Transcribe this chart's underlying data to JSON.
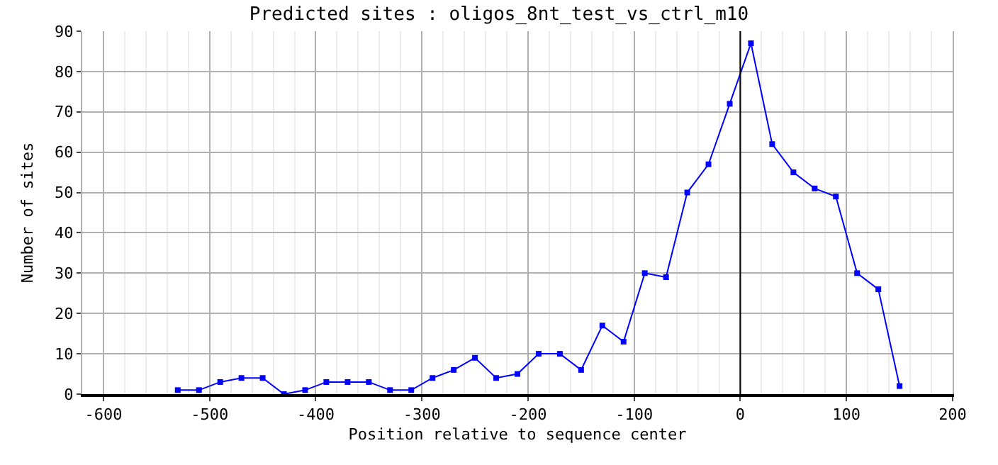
{
  "chart_data": {
    "type": "line",
    "title": "Predicted sites : oligos_8nt_test_vs_ctrl_m10",
    "xlabel": "Position relative to sequence center",
    "ylabel": "Number of sites",
    "x": [
      -530,
      -510,
      -490,
      -470,
      -450,
      -430,
      -410,
      -390,
      -370,
      -350,
      -330,
      -310,
      -290,
      -270,
      -250,
      -230,
      -210,
      -190,
      -170,
      -150,
      -130,
      -110,
      -90,
      -70,
      -50,
      -30,
      -10,
      10,
      30,
      50,
      70,
      90,
      110,
      130,
      150
    ],
    "series": [
      {
        "color": "#0000ff",
        "values": [
          1,
          1,
          3,
          4,
          4,
          0,
          1,
          3,
          3,
          3,
          1,
          1,
          4,
          6,
          9,
          4,
          5,
          10,
          10,
          6,
          17,
          13,
          30,
          29,
          50,
          57,
          72,
          87,
          62,
          55,
          51,
          49,
          30,
          26,
          2
        ]
      }
    ],
    "xlim": [
      -620,
      200
    ],
    "xticks": [
      -600,
      -500,
      -400,
      -300,
      -200,
      -100,
      0,
      100,
      200
    ],
    "ylim": [
      0,
      90
    ],
    "yticks": [
      0,
      10,
      20,
      30,
      40,
      50,
      60,
      70,
      80,
      90
    ],
    "ref_lines": [
      {
        "axis": "x",
        "value": 0,
        "color": "#000000"
      }
    ],
    "grid": true,
    "marker": "square",
    "line_style": "solid"
  }
}
